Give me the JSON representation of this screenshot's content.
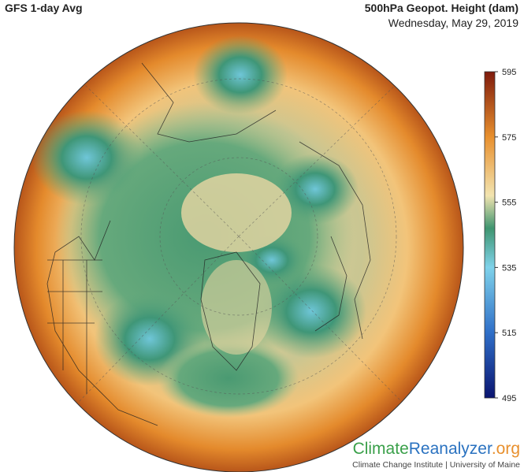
{
  "header": {
    "title": "GFS 1-day Avg",
    "variable": "500hPa Geopot. Height (dam)",
    "date": "Wednesday, May 29, 2019"
  },
  "colorbar": {
    "range": [
      495,
      595
    ],
    "ticks": [
      595,
      575,
      555,
      535,
      515,
      495
    ]
  },
  "footer": {
    "logo": [
      "Climate",
      "Reanalyzer",
      ".org"
    ],
    "credit": "Climate Change Institute | University of Maine"
  }
}
